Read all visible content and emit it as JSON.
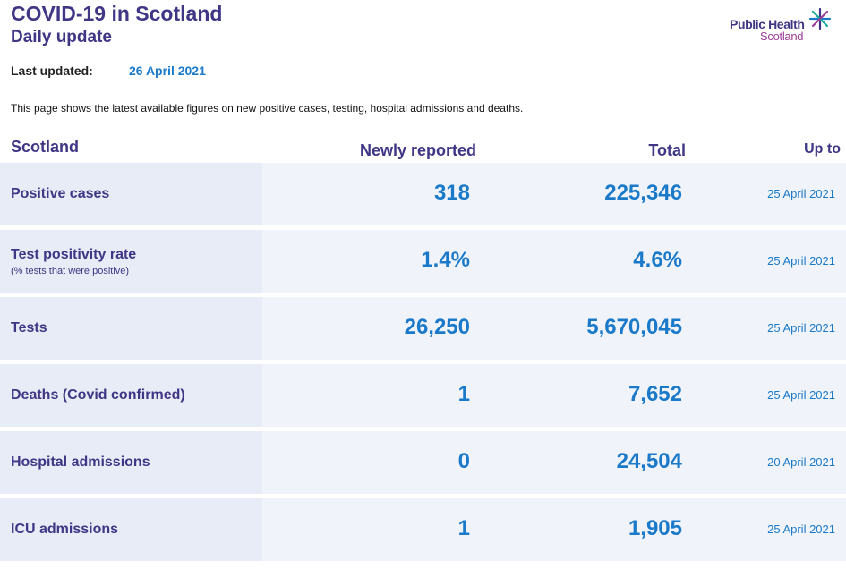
{
  "header": {
    "title": "COVID-19 in Scotland",
    "subtitle": "Daily update",
    "logo_line1": "Public Health",
    "logo_line2": "Scotland"
  },
  "updated": {
    "label": "Last updated:",
    "value": "26 April 2021"
  },
  "description": "This page shows the latest available figures on new positive cases, testing, hospital admissions and deaths.",
  "table": {
    "headers": {
      "region": "Scotland",
      "new": "Newly reported",
      "total": "Total",
      "up_to": "Up to"
    },
    "rows": [
      {
        "label": "Positive cases",
        "sublabel": "",
        "new": "318",
        "total": "225,346",
        "date": "25 April 2021"
      },
      {
        "label": "Test positivity rate",
        "sublabel": "(% tests that were positive)",
        "new": "1.4%",
        "total": "4.6%",
        "date": "25 April 2021"
      },
      {
        "label": "Tests",
        "sublabel": "",
        "new": "26,250",
        "total": "5,670,045",
        "date": "25 April 2021"
      },
      {
        "label": "Deaths (Covid confirmed)",
        "sublabel": "",
        "new": "1",
        "total": "7,652",
        "date": "25 April 2021"
      },
      {
        "label": "Hospital admissions",
        "sublabel": "",
        "new": "0",
        "total": "24,504",
        "date": "20 April 2021"
      },
      {
        "label": "ICU admissions",
        "sublabel": "",
        "new": "1",
        "total": "1,905",
        "date": "25 April 2021"
      }
    ]
  },
  "colors": {
    "brand_purple": "#3f3685",
    "accent_blue": "#1a7ac9",
    "logo_magenta": "#9b3d97"
  }
}
